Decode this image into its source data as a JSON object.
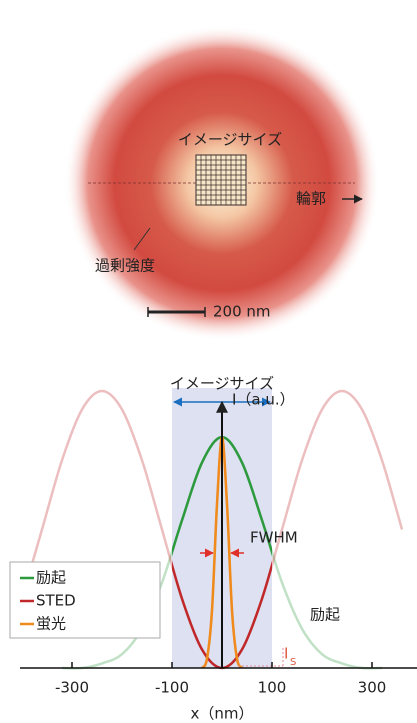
{
  "illustration": {
    "image_size": "イメージサイズ",
    "contour": "輪郭",
    "excess": "過剰強度",
    "scale": "200 nm"
  },
  "chart_data": {
    "type": "line",
    "image_size_label": "イメージサイズ",
    "y_label": "I（a.u.）",
    "x_label": "x（nm）",
    "annotations": {
      "fwhm": "FWHM",
      "excitation": "励起",
      "saturation": "I",
      "saturation_sub": "S"
    },
    "xlim": [
      -400,
      390
    ],
    "ylim": [
      0,
      1.2
    ],
    "xticks": [
      -300,
      -100,
      100,
      300
    ],
    "series": [
      {
        "name": "励起",
        "color": "#2e9a3e",
        "x": [
          -320,
          -280,
          -240,
          -200,
          -160,
          -120,
          -80,
          -40,
          0,
          40,
          80,
          120,
          160,
          200,
          240,
          280,
          320
        ],
        "values": [
          0,
          0,
          0.02,
          0.06,
          0.17,
          0.37,
          0.64,
          0.89,
          1,
          0.89,
          0.64,
          0.37,
          0.17,
          0.06,
          0.02,
          0,
          0
        ]
      },
      {
        "name": "STED",
        "color": "#c0282a",
        "x": [
          -400,
          -360,
          -320,
          -280,
          -240,
          -200,
          -160,
          -120,
          -80,
          -40,
          0,
          40,
          80,
          120,
          160,
          200,
          240,
          280,
          320,
          360
        ],
        "values": [
          0.3,
          0.6,
          0.9,
          1.12,
          1.2,
          1.12,
          0.9,
          0.6,
          0.3,
          0.08,
          0,
          0.08,
          0.3,
          0.6,
          0.9,
          1.12,
          1.2,
          1.12,
          0.9,
          0.6
        ]
      },
      {
        "name": "蛍光",
        "color": "#f08a1c",
        "x": [
          -40,
          -30,
          -20,
          -10,
          0,
          10,
          20,
          30,
          40
        ],
        "values": [
          0,
          0.04,
          0.25,
          0.71,
          1,
          0.71,
          0.25,
          0.04,
          0
        ]
      }
    ]
  }
}
